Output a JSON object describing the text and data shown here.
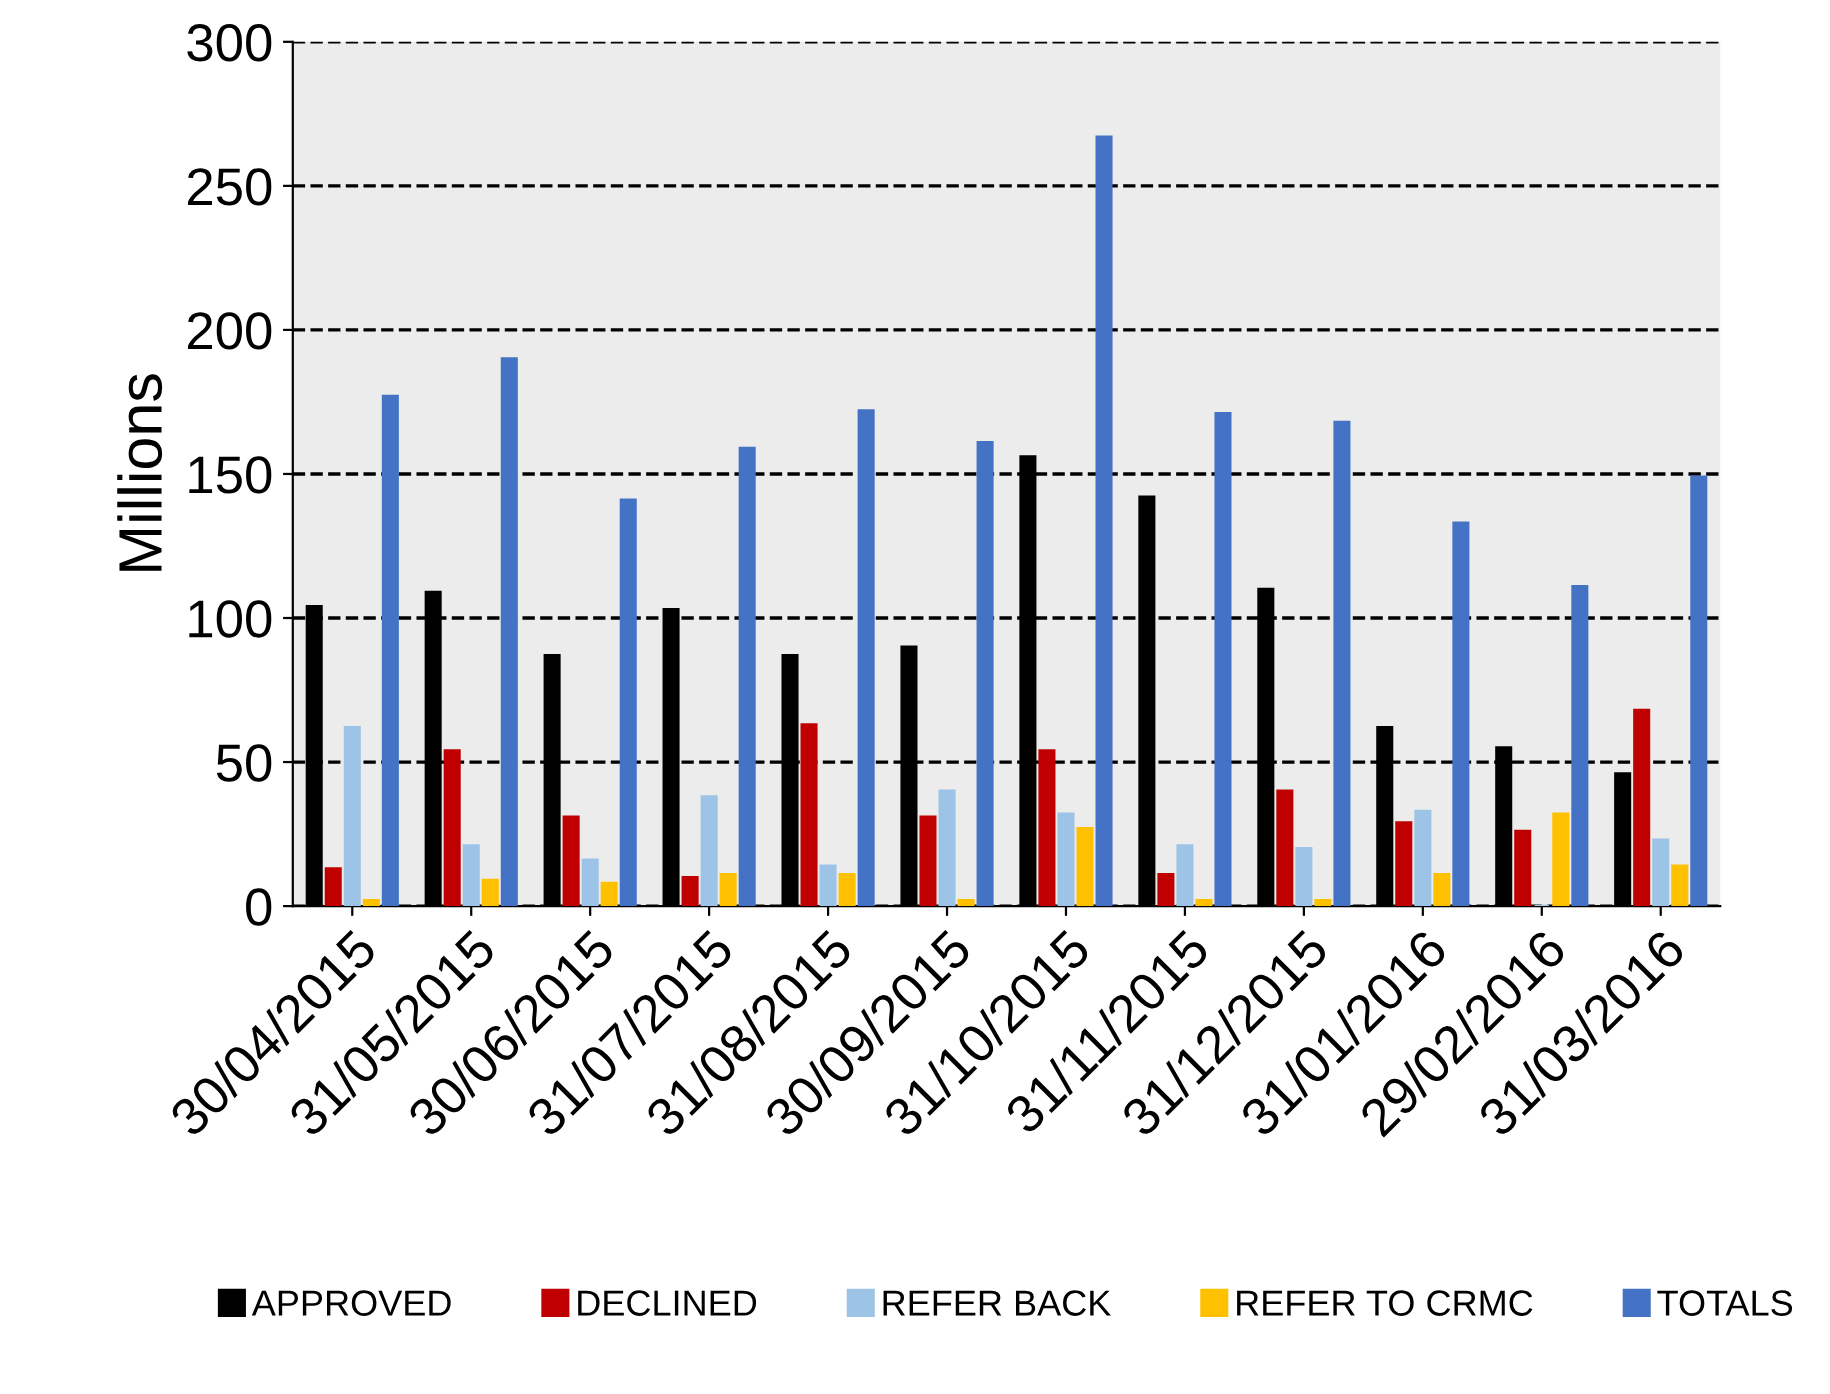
{
  "chart_data": {
    "type": "bar",
    "ylabel": "Millions",
    "categories": [
      "30/04/2015",
      "31/05/2015",
      "30/06/2015",
      "31/07/2015",
      "31/08/2015",
      "30/09/2015",
      "31/10/2015",
      "31/11/2015",
      "31/12/2015",
      "31/01/2016",
      "29/02/2016",
      "31/03/2016"
    ],
    "series": [
      {
        "name": "APPROVED",
        "color": "#000000",
        "values": [
          104,
          109,
          87,
          103,
          87,
          90,
          156,
          142,
          110,
          62,
          55,
          46
        ]
      },
      {
        "name": "DECLINED",
        "color": "#c00000",
        "values": [
          13,
          54,
          31,
          10,
          63,
          31,
          54,
          11,
          40,
          29,
          26,
          68
        ]
      },
      {
        "name": "REFER BACK",
        "color": "#9dc3e6",
        "values": [
          62,
          21,
          16,
          38,
          14,
          40,
          32,
          21,
          20,
          33,
          0,
          23
        ]
      },
      {
        "name": "REFER TO CRMC",
        "color": "#ffc000",
        "values": [
          2,
          9,
          8,
          11,
          11,
          2,
          27,
          2,
          2,
          11,
          32,
          14
        ]
      },
      {
        "name": "TOTALS",
        "color": "#4472c4",
        "values": [
          177,
          190,
          141,
          159,
          172,
          161,
          267,
          171,
          168,
          133,
          111,
          149
        ]
      }
    ],
    "ylim": [
      0,
      300
    ],
    "yticks": [
      0,
      50,
      100,
      150,
      200,
      250,
      300
    ],
    "grid": "y",
    "legend": "bottom"
  }
}
